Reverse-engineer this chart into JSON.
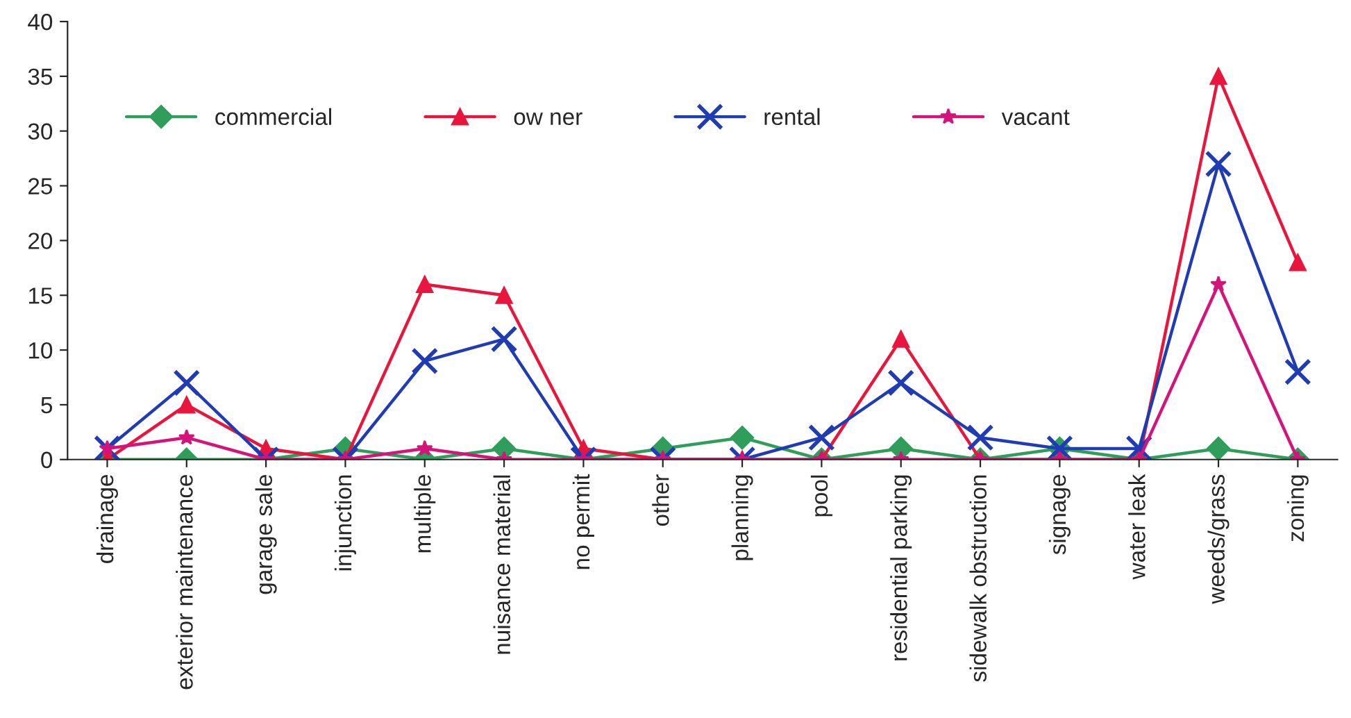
{
  "chart_data": {
    "type": "line",
    "categories": [
      "drainage",
      "exterior maintenance",
      "garage sale",
      "injunction",
      "multiple",
      "nuisance material",
      "no permit",
      "other",
      "planning",
      "pool",
      "residential parking",
      "sidewalk obstruction",
      "signage",
      "water leak",
      "weeds/grass",
      "zoning"
    ],
    "series": [
      {
        "name": "commercial",
        "color": "#2e9e5a",
        "marker": "diamond",
        "values": [
          0,
          0,
          0,
          1,
          0,
          1,
          0,
          1,
          2,
          0,
          1,
          0,
          1,
          0,
          1,
          0
        ]
      },
      {
        "name": "ow ner",
        "color": "#e8163c",
        "marker": "triangle",
        "values": [
          0,
          5,
          1,
          0,
          16,
          15,
          1,
          0,
          0,
          0,
          11,
          0,
          0,
          0,
          35,
          18
        ]
      },
      {
        "name": "rental",
        "color": "#1f3cb4",
        "marker": "cross",
        "values": [
          1,
          7,
          0,
          0,
          9,
          11,
          0,
          0,
          0,
          2,
          7,
          2,
          1,
          1,
          27,
          8
        ]
      },
      {
        "name": "vacant",
        "color": "#d4147a",
        "marker": "star",
        "values": [
          1,
          2,
          0,
          0,
          1,
          0,
          0,
          0,
          0,
          0,
          0,
          0,
          0,
          0,
          16,
          0
        ]
      }
    ],
    "ylim": [
      0,
      40
    ],
    "yticks": [
      0,
      5,
      10,
      15,
      20,
      25,
      30,
      35,
      40
    ],
    "grid": false,
    "legend": "top left",
    "line_style": "solid"
  }
}
